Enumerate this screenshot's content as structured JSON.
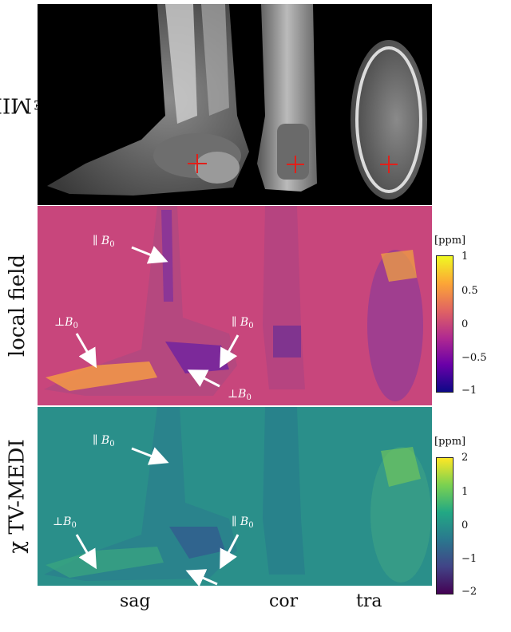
{
  "rows": [
    {
      "label": "MIP_TE",
      "label_main": "MIP",
      "label_sub": "TE",
      "colormap": "gray",
      "bg": "#000000"
    },
    {
      "label": "local field",
      "colormap": "plasma",
      "bg": "#c8467c"
    },
    {
      "label": "χ TV-MEDI",
      "colormap": "viridis",
      "bg": "#2a8f8a"
    }
  ],
  "columns": [
    "sag",
    "cor",
    "tra"
  ],
  "annotations": {
    "parallel": "∥ B",
    "perp": "⊥B",
    "sub": "0"
  },
  "colorbars": {
    "local_field": {
      "unit": "[ppm]",
      "ticks": [
        "1",
        "0.5",
        "0",
        "−0.5",
        "−1"
      ],
      "min": -1,
      "max": 1
    },
    "chi": {
      "unit": "[ppm]",
      "ticks": [
        "2",
        "1",
        "0",
        "−1",
        "−2"
      ],
      "min": -2,
      "max": 2
    }
  },
  "colors": {
    "crosshair": "#e0201a",
    "arrow": "#ffffff"
  }
}
